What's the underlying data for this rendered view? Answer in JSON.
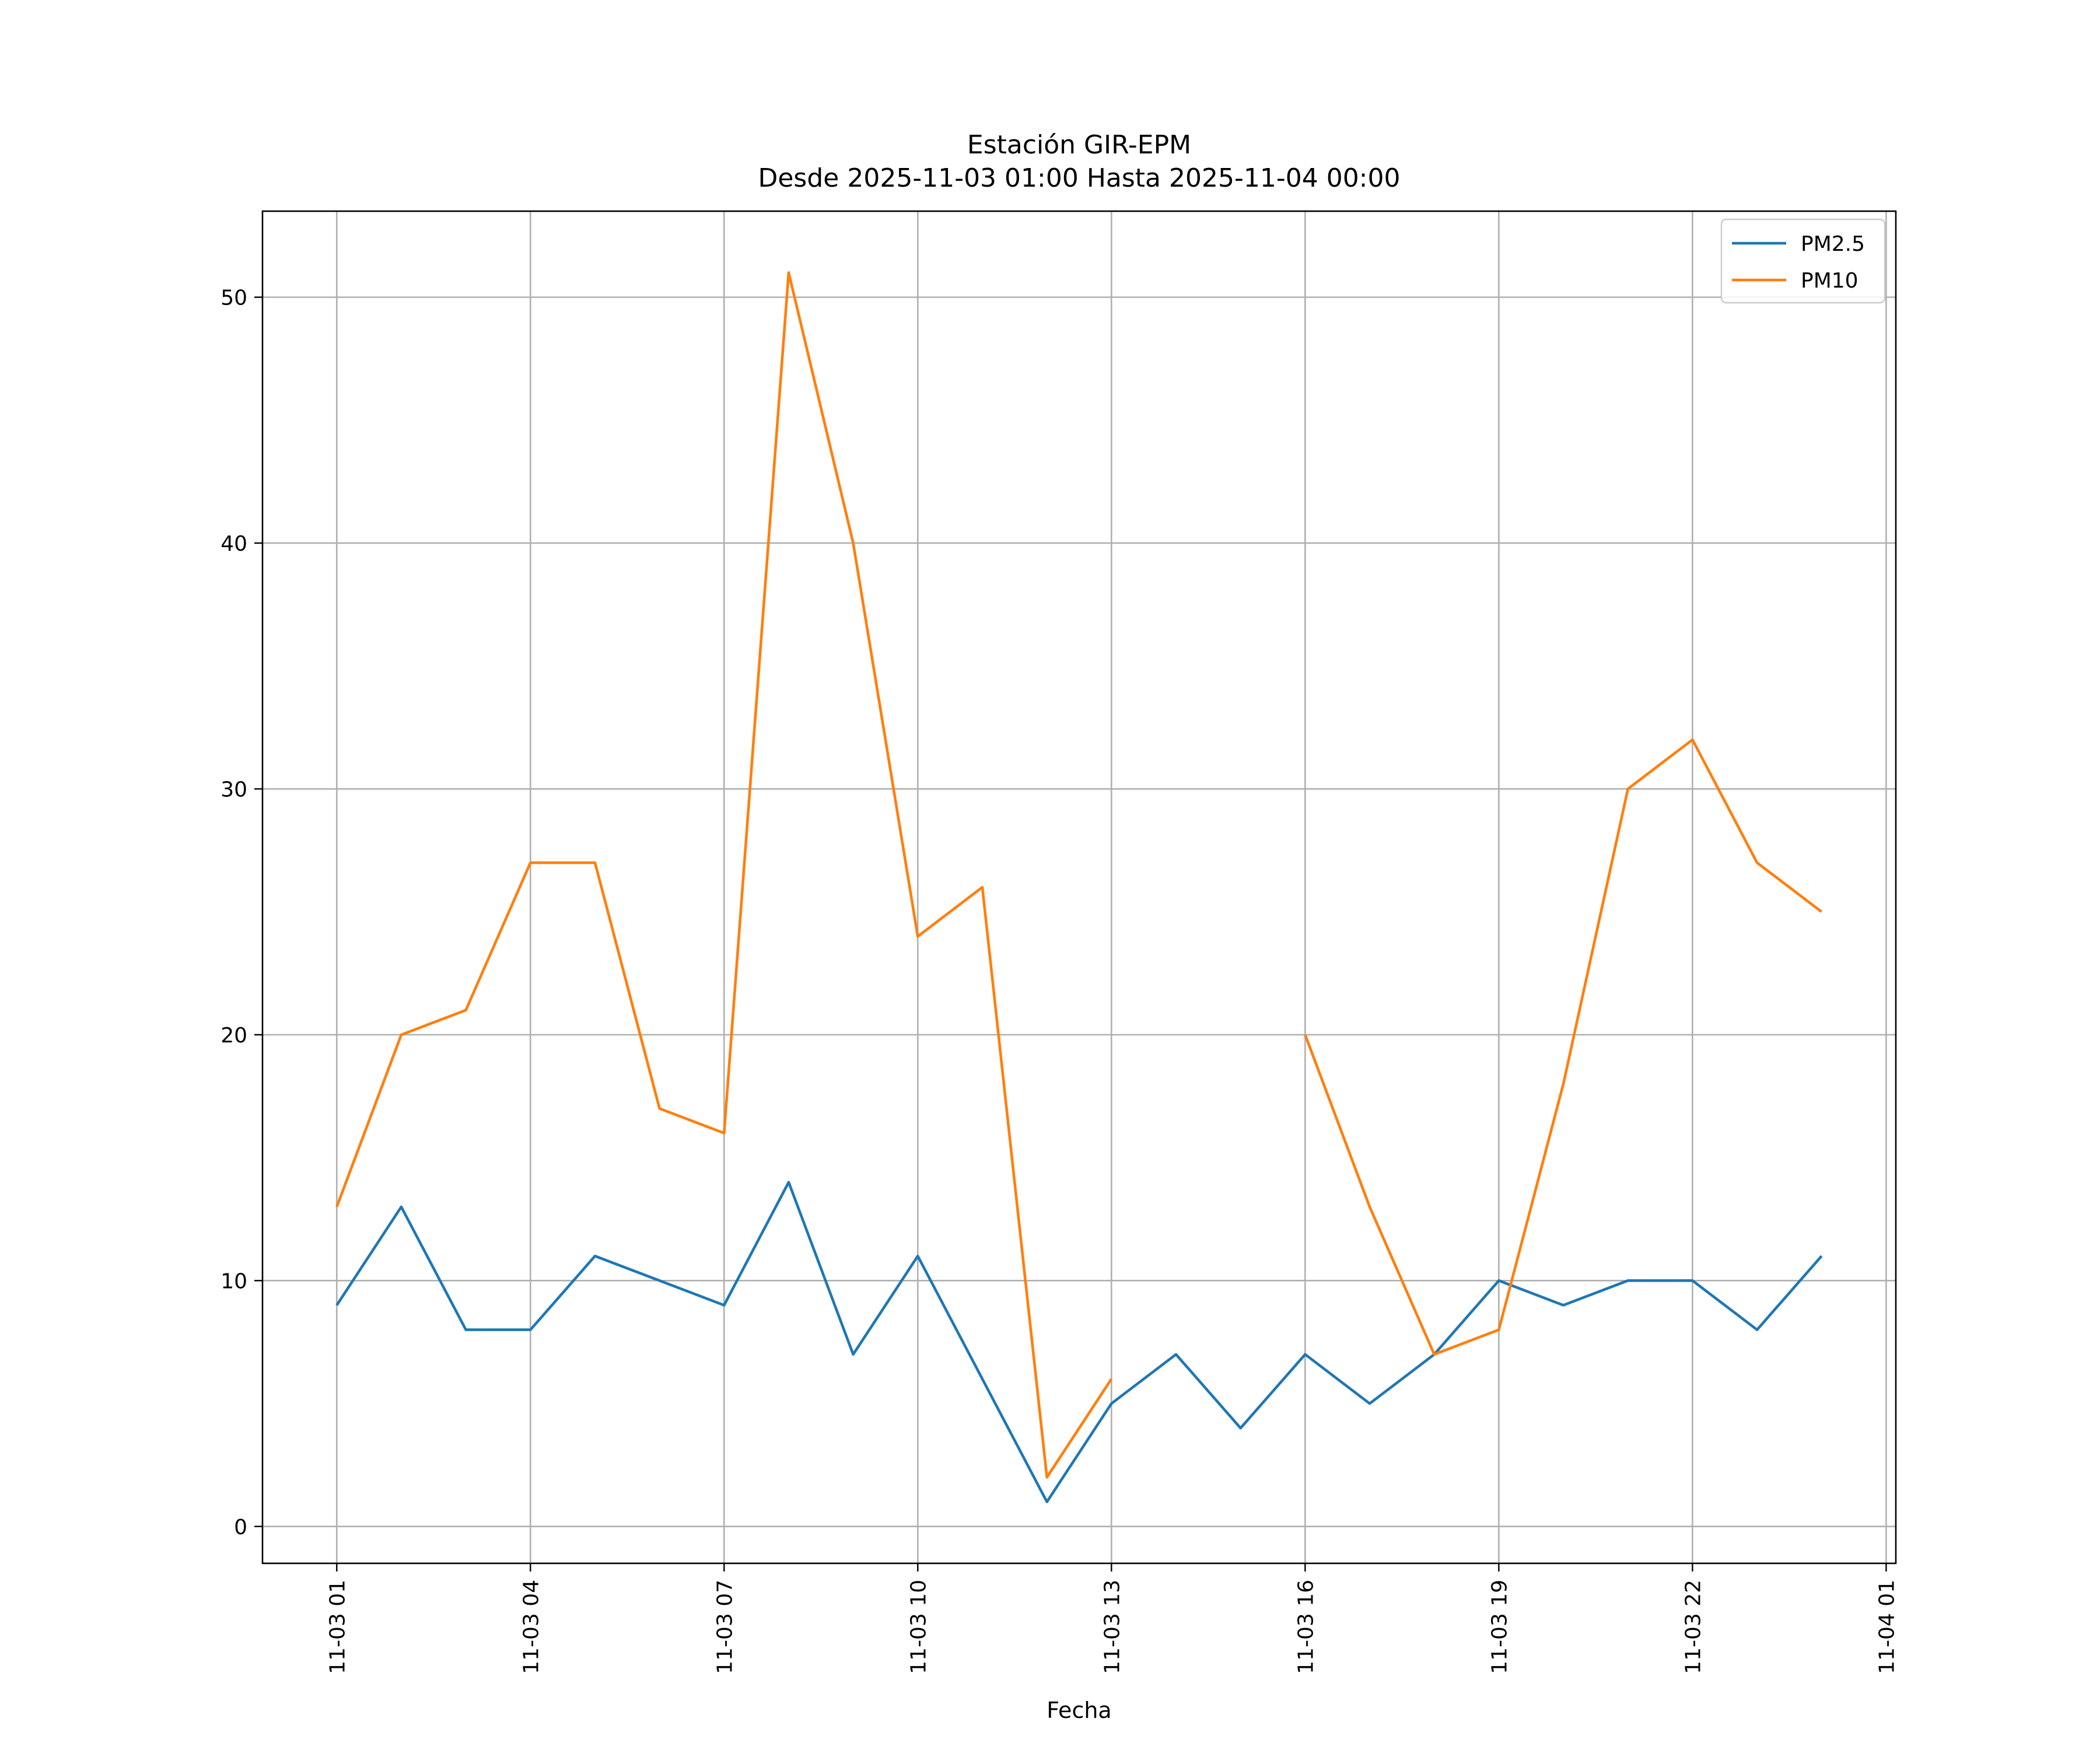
{
  "chart_data": {
    "type": "line",
    "title": "Estación GIR-EPM",
    "subtitle": "Desde 2025-11-03 01:00 Hasta 2025-11-04 00:00",
    "xlabel": "Fecha",
    "ylabel": "",
    "x": [
      "11-03 01",
      "11-03 02",
      "11-03 03",
      "11-03 04",
      "11-03 05",
      "11-03 06",
      "11-03 07",
      "11-03 08",
      "11-03 09",
      "11-03 10",
      "11-03 11",
      "11-03 12",
      "11-03 13",
      "11-03 14",
      "11-03 15",
      "11-03 16",
      "11-03 17",
      "11-03 18",
      "11-03 19",
      "11-03 20",
      "11-03 21",
      "11-03 22",
      "11-03 23",
      "11-04 00"
    ],
    "x_hours": [
      1,
      2,
      3,
      4,
      5,
      6,
      7,
      8,
      9,
      10,
      11,
      12,
      13,
      14,
      15,
      16,
      17,
      18,
      19,
      20,
      21,
      22,
      23,
      24
    ],
    "xlim_hours": [
      -0.15,
      25.15
    ],
    "x_ticks": [
      {
        "hour": 1,
        "label": "11-03 01"
      },
      {
        "hour": 4,
        "label": "11-03 04"
      },
      {
        "hour": 7,
        "label": "11-03 07"
      },
      {
        "hour": 10,
        "label": "11-03 10"
      },
      {
        "hour": 13,
        "label": "11-03 13"
      },
      {
        "hour": 16,
        "label": "11-03 16"
      },
      {
        "hour": 19,
        "label": "11-03 19"
      },
      {
        "hour": 22,
        "label": "11-03 22"
      },
      {
        "hour": 25,
        "label": "11-04 01"
      }
    ],
    "ylim": [
      -1.5,
      53.5
    ],
    "y_ticks": [
      0,
      10,
      20,
      30,
      40,
      50
    ],
    "grid": true,
    "legend_position": "top-right",
    "series": [
      {
        "name": "PM2.5",
        "color": "#1f77b4",
        "values": [
          9,
          13,
          8,
          8,
          11,
          10,
          9,
          14,
          7,
          11,
          6,
          1,
          5,
          7,
          4,
          7,
          5,
          7,
          10,
          9,
          10,
          10,
          8,
          11
        ]
      },
      {
        "name": "PM10",
        "color": "#ff7f0e",
        "values": [
          13,
          20,
          21,
          27,
          27,
          17,
          16,
          51,
          40,
          24,
          26,
          2,
          6,
          null,
          null,
          20,
          13,
          7,
          8,
          18,
          30,
          32,
          27,
          25
        ]
      }
    ]
  }
}
